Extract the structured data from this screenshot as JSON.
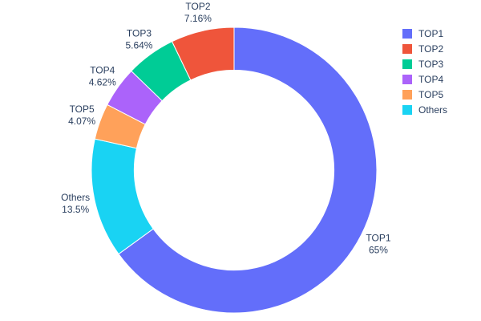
{
  "chart_data": {
    "type": "pie",
    "subtype": "donut",
    "hole": 0.7,
    "title": "",
    "labels": [
      "TOP1",
      "TOP2",
      "TOP3",
      "TOP4",
      "TOP5",
      "Others"
    ],
    "values": [
      65,
      7.16,
      5.64,
      4.62,
      4.07,
      13.5
    ],
    "value_labels": [
      "65%",
      "7.16%",
      "5.64%",
      "4.62%",
      "4.07%",
      "13.5%"
    ],
    "colors": {
      "TOP1": "#636efa",
      "TOP2": "#ef553b",
      "TOP3": "#00cc96",
      "TOP4": "#ab63fa",
      "TOP5": "#ffa15a",
      "Others": "#19d3f3"
    },
    "draw_order_clockwise_from_top": [
      "TOP1",
      "Others",
      "TOP5",
      "TOP4",
      "TOP3",
      "TOP2"
    ],
    "legend": {
      "position": "top-right",
      "entries": [
        "TOP1",
        "TOP2",
        "TOP3",
        "TOP4",
        "TOP5",
        "Others"
      ]
    },
    "label_text_color": "#2a3f5f",
    "slice_separator_color": "#ffffff",
    "background": "#ffffff",
    "labels_position": "outside"
  }
}
